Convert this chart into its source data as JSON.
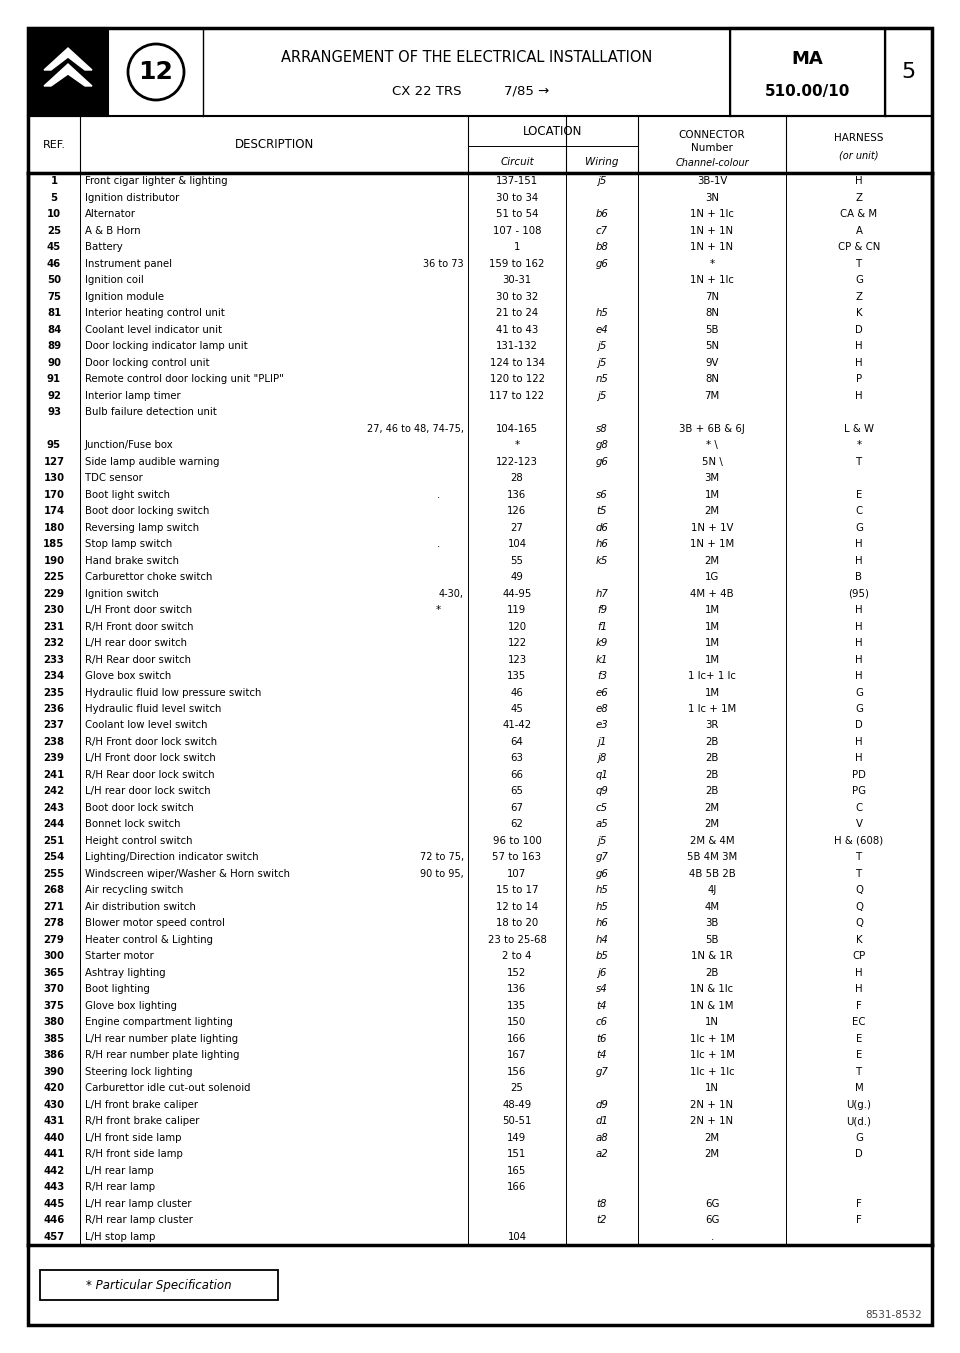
{
  "title_line1": "ARRANGEMENT OF THE ELECTRICAL INSTALLATION",
  "title_line2": "CX 22 TRS",
  "title_line3": "7/85 →",
  "ref_code_1": "MA",
  "ref_code_2": "510.00/10",
  "page_num": "5",
  "footnote": "* Particular Specification",
  "footer": "8531-8532",
  "rows": [
    [
      "1",
      "Front cigar lighter & lighting",
      "",
      "137-151",
      "j5",
      "3B-1V",
      "H"
    ],
    [
      "5",
      "Ignition distributor",
      "",
      "30 to 34",
      "",
      "3N",
      "Z"
    ],
    [
      "10",
      "Alternator",
      "",
      "51 to 54",
      "b6",
      "1N + 1lc",
      "CA & M"
    ],
    [
      "25",
      "A & B Horn",
      "",
      "107 - 108",
      "c7",
      "1N + 1N",
      "A"
    ],
    [
      "45",
      "Battery",
      "",
      "1",
      "b8",
      "1N + 1N",
      "CP & CN"
    ],
    [
      "46",
      "Instrument panel",
      "36 to 73",
      "159 to 162",
      "g6",
      "*",
      "T"
    ],
    [
      "50",
      "Ignition coil",
      "",
      "30-31",
      "",
      "1N + 1lc",
      "G"
    ],
    [
      "75",
      "Ignition module",
      "",
      "30 to 32",
      "",
      "7N",
      "Z"
    ],
    [
      "81",
      "Interior heating control unit",
      "",
      "21 to 24",
      "h5",
      "8N",
      "K"
    ],
    [
      "84",
      "Coolant level indicator unit",
      "",
      "41 to 43",
      "e4",
      "5B",
      "D"
    ],
    [
      "89",
      "Door locking indicator lamp unit",
      "",
      "131-132",
      "j5",
      "5N",
      "H"
    ],
    [
      "90",
      "Door locking control unit",
      "",
      "124 to 134",
      "j5",
      "9V",
      "H"
    ],
    [
      "91",
      "Remote control door locking unit \"PLIP\"",
      "",
      "120 to 122",
      "n5",
      "8N",
      "P"
    ],
    [
      "92",
      "Interior lamp timer",
      "",
      "117 to 122",
      "j5",
      "7M",
      "H"
    ],
    [
      "93",
      "Bulb failure detection unit",
      "",
      "",
      "",
      "",
      ""
    ],
    [
      "",
      "",
      "27, 46 to 48, 74-75,",
      "104-165",
      "s8",
      "3B + 6B & 6J",
      "L & W"
    ],
    [
      "95",
      "Junction/Fuse box",
      "",
      "*",
      "g8",
      "* \\",
      "*"
    ],
    [
      "127",
      "Side lamp audible warning",
      "",
      "122-123",
      "g6",
      "5N \\",
      "T"
    ],
    [
      "130",
      "TDC sensor",
      "",
      "28",
      "",
      "3M",
      ""
    ],
    [
      "170",
      "Boot light switch",
      ".",
      "136",
      "s6",
      "1M",
      "E"
    ],
    [
      "174",
      "Boot door locking switch",
      "",
      "126",
      "t5",
      "2M",
      "C"
    ],
    [
      "180",
      "Reversing lamp switch",
      "",
      "27",
      "d6",
      "1N + 1V",
      "G"
    ],
    [
      "185",
      "Stop lamp switch",
      ".",
      "104",
      "h6",
      "1N + 1M",
      "H"
    ],
    [
      "190",
      "Hand brake switch",
      "",
      "55",
      "k5",
      "2M",
      "H"
    ],
    [
      "225",
      "Carburettor choke switch",
      "",
      "49",
      "",
      "1G",
      "B"
    ],
    [
      "229",
      "Ignition switch",
      "4-30,",
      "44-95",
      "h7",
      "4M + 4B",
      "(95)"
    ],
    [
      "230",
      "L/H Front door switch",
      "*",
      "119",
      "f9",
      "1M",
      "H"
    ],
    [
      "231",
      "R/H Front door switch",
      "",
      "120",
      "f1",
      "1M",
      "H"
    ],
    [
      "232",
      "L/H rear door switch",
      "",
      "122",
      "k9",
      "1M",
      "H"
    ],
    [
      "233",
      "R/H Rear door switch",
      "",
      "123",
      "k1",
      "1M",
      "H"
    ],
    [
      "234",
      "Glove box switch",
      "",
      "135",
      "f3",
      "1 lc+ 1 lc",
      "H"
    ],
    [
      "235",
      "Hydraulic fluid low pressure switch",
      "",
      "46",
      "e6",
      "1M",
      "G"
    ],
    [
      "236",
      "Hydraulic fluid level switch",
      "",
      "45",
      "e8",
      "1 lc + 1M",
      "G"
    ],
    [
      "237",
      "Coolant low level switch",
      "",
      "41-42",
      "e3",
      "3R",
      "D"
    ],
    [
      "238",
      "R/H Front door lock switch",
      "",
      "64",
      "j1",
      "2B",
      "H"
    ],
    [
      "239",
      "L/H Front door lock switch",
      "",
      "63",
      "j8",
      "2B",
      "H"
    ],
    [
      "241",
      "R/H Rear door lock switch",
      "",
      "66",
      "q1",
      "2B",
      "PD"
    ],
    [
      "242",
      "L/H rear door lock switch",
      "",
      "65",
      "q9",
      "2B",
      "PG"
    ],
    [
      "243",
      "Boot door lock switch",
      "",
      "67",
      "c5",
      "2M",
      "C"
    ],
    [
      "244",
      "Bonnet lock switch",
      "",
      "62",
      "a5",
      "2M",
      "V"
    ],
    [
      "251",
      "Height control switch",
      "",
      "96 to 100",
      "j5",
      "2M & 4M",
      "H & (608)"
    ],
    [
      "254",
      "Lighting/Direction indicator switch",
      "72 to 75,",
      "57 to 163",
      "g7",
      "5B 4M 3M",
      "T"
    ],
    [
      "255",
      "Windscreen wiper/Washer & Horn switch",
      "90 to 95,",
      "107",
      "g6",
      "4B 5B 2B",
      "T"
    ],
    [
      "268",
      "Air recycling switch",
      "",
      "15 to 17",
      "h5",
      "4J",
      "Q"
    ],
    [
      "271",
      "Air distribution switch",
      "",
      "12 to 14",
      "h5",
      "4M",
      "Q"
    ],
    [
      "278",
      "Blower motor speed control",
      "",
      "18 to 20",
      "h6",
      "3B",
      "Q"
    ],
    [
      "279",
      "Heater control & Lighting",
      "",
      "23 to 25-68",
      "h4",
      "5B",
      "K"
    ],
    [
      "300",
      "Starter motor",
      "",
      "2 to 4",
      "b5",
      "1N & 1R",
      "CP"
    ],
    [
      "365",
      "Ashtray lighting",
      "",
      "152",
      "j6",
      "2B",
      "H"
    ],
    [
      "370",
      "Boot lighting",
      "",
      "136",
      "s4",
      "1N & 1lc",
      "H"
    ],
    [
      "375",
      "Glove box lighting",
      "",
      "135",
      "t4",
      "1N & 1M",
      "F"
    ],
    [
      "380",
      "Engine compartment lighting",
      "",
      "150",
      "c6",
      "1N",
      "EC"
    ],
    [
      "385",
      "L/H rear number plate lighting",
      "",
      "166",
      "t6",
      "1lc + 1M",
      "E"
    ],
    [
      "386",
      "R/H rear number plate lighting",
      "",
      "167",
      "t4",
      "1lc + 1M",
      "E"
    ],
    [
      "390",
      "Steering lock lighting",
      "",
      "156",
      "g7",
      "1lc + 1lc",
      "T"
    ],
    [
      "420",
      "Carburettor idle cut-out solenoid",
      "",
      "25",
      "",
      "1N",
      "M"
    ],
    [
      "430",
      "L/H front brake caliper",
      "",
      "48-49",
      "d9",
      "2N + 1N",
      "U(g.)"
    ],
    [
      "431",
      "R/H front brake caliper",
      "",
      "50-51",
      "d1",
      "2N + 1N",
      "U(d.)"
    ],
    [
      "440",
      "L/H front side lamp",
      "",
      "149",
      "a8",
      "2M",
      "G"
    ],
    [
      "441",
      "R/H front side lamp",
      "",
      "151",
      "a2",
      "2M",
      "D"
    ],
    [
      "442",
      "L/H rear lamp",
      "",
      "165",
      "",
      "",
      ""
    ],
    [
      "443",
      "R/H rear lamp",
      "",
      "166",
      "",
      "",
      ""
    ],
    [
      "445",
      "L/H rear lamp cluster",
      "",
      "",
      "t8",
      "6G",
      "F"
    ],
    [
      "446",
      "R/H rear lamp cluster",
      "",
      "",
      "t2",
      "6G",
      "F"
    ],
    [
      "457",
      "L/H stop lamp",
      "",
      "104",
      "",
      ".",
      ""
    ]
  ]
}
